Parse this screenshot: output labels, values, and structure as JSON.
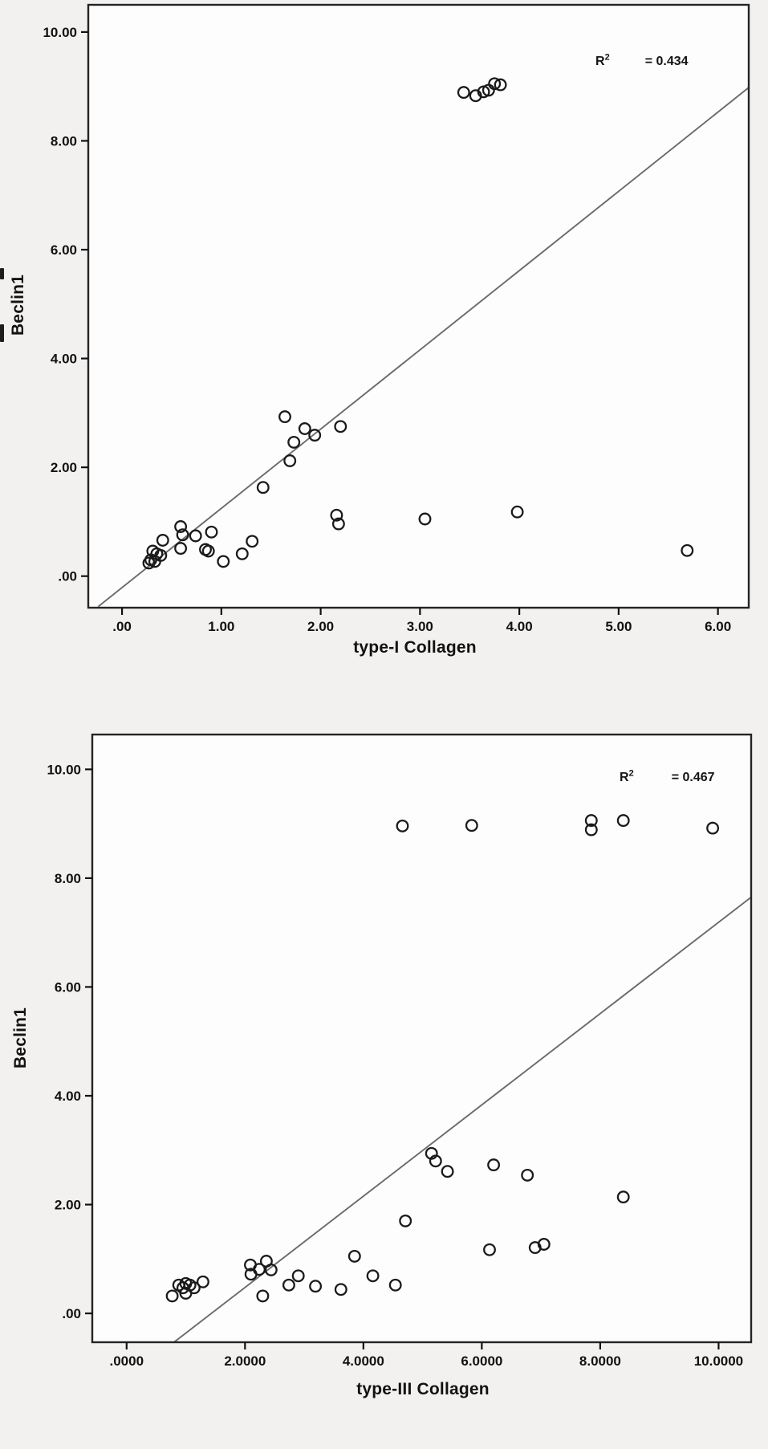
{
  "figure": {
    "background": "#f2f1f0",
    "marker_color": "#1a1a1a",
    "fit_line_color": "#6a6a6a",
    "frame_color": "#242424"
  },
  "chart_data": [
    {
      "id": "top",
      "type": "scatter",
      "title": "",
      "xlabel": "type-I Collagen",
      "ylabel": "Beclin1",
      "r2_base": "R",
      "r2_sup": "2",
      "r2_eq": "= 0.434",
      "r2_value": 0.434,
      "grid": false,
      "legend": "none",
      "xlim": [
        -0.34,
        6.31
      ],
      "ylim": [
        -0.58,
        10.5
      ],
      "x_ticks": [
        {
          "v": 0,
          "label": ".00"
        },
        {
          "v": 1,
          "label": "1.00"
        },
        {
          "v": 2,
          "label": "2.00"
        },
        {
          "v": 3,
          "label": "3.00"
        },
        {
          "v": 4,
          "label": "4.00"
        },
        {
          "v": 5,
          "label": "5.00"
        },
        {
          "v": 6,
          "label": "6.00"
        }
      ],
      "y_ticks": [
        {
          "v": 0,
          "label": ".00"
        },
        {
          "v": 2,
          "label": "2.00"
        },
        {
          "v": 4,
          "label": "4.00"
        },
        {
          "v": 6,
          "label": "6.00"
        },
        {
          "v": 8,
          "label": "8.00"
        },
        {
          "v": 10,
          "label": "10.00"
        }
      ],
      "fit_line": {
        "x1": -0.24,
        "y1": -0.56,
        "x2": 6.31,
        "y2": 8.98
      },
      "points": [
        [
          0.27,
          0.24
        ],
        [
          0.29,
          0.3
        ],
        [
          0.31,
          0.46
        ],
        [
          0.33,
          0.27
        ],
        [
          0.35,
          0.41
        ],
        [
          0.39,
          0.38
        ],
        [
          0.41,
          0.66
        ],
        [
          0.59,
          0.51
        ],
        [
          0.59,
          0.91
        ],
        [
          0.61,
          0.76
        ],
        [
          0.74,
          0.74
        ],
        [
          0.84,
          0.49
        ],
        [
          0.87,
          0.46
        ],
        [
          0.9,
          0.81
        ],
        [
          1.02,
          0.27
        ],
        [
          1.21,
          0.41
        ],
        [
          1.31,
          0.64
        ],
        [
          1.42,
          1.63
        ],
        [
          1.64,
          2.93
        ],
        [
          1.69,
          2.12
        ],
        [
          1.73,
          2.46
        ],
        [
          1.84,
          2.71
        ],
        [
          1.94,
          2.59
        ],
        [
          2.16,
          1.12
        ],
        [
          2.18,
          0.96
        ],
        [
          2.2,
          2.75
        ],
        [
          3.05,
          1.05
        ],
        [
          3.98,
          1.18
        ],
        [
          5.69,
          0.47
        ],
        [
          3.44,
          8.89
        ],
        [
          3.56,
          8.83
        ],
        [
          3.64,
          8.9
        ],
        [
          3.69,
          8.93
        ],
        [
          3.75,
          9.05
        ],
        [
          3.81,
          9.03
        ]
      ]
    },
    {
      "id": "bottom",
      "type": "scatter",
      "title": "",
      "xlabel": "type-III Collagen",
      "ylabel": "Beclin1",
      "r2_base": "R",
      "r2_sup": "2",
      "r2_eq": "= 0.467",
      "r2_value": 0.467,
      "grid": false,
      "legend": "none",
      "xlim": [
        -0.58,
        10.55
      ],
      "ylim": [
        -0.53,
        10.64
      ],
      "x_ticks": [
        {
          "v": 0,
          "label": ".0000"
        },
        {
          "v": 2,
          "label": "2.0000"
        },
        {
          "v": 4,
          "label": "4.0000"
        },
        {
          "v": 6,
          "label": "6.0000"
        },
        {
          "v": 8,
          "label": "8.0000"
        },
        {
          "v": 10,
          "label": "10.0000"
        }
      ],
      "y_ticks": [
        {
          "v": 0,
          "label": ".00"
        },
        {
          "v": 2,
          "label": "2.00"
        },
        {
          "v": 4,
          "label": "4.00"
        },
        {
          "v": 6,
          "label": "6.00"
        },
        {
          "v": 8,
          "label": "8.00"
        },
        {
          "v": 10,
          "label": "10.00"
        }
      ],
      "fit_line": {
        "x1": 0.8,
        "y1": -0.53,
        "x2": 10.55,
        "y2": 7.65
      },
      "points": [
        [
          0.77,
          0.32
        ],
        [
          0.88,
          0.52
        ],
        [
          0.95,
          0.47
        ],
        [
          1.0,
          0.55
        ],
        [
          1.0,
          0.37
        ],
        [
          1.07,
          0.52
        ],
        [
          1.14,
          0.47
        ],
        [
          1.29,
          0.58
        ],
        [
          2.09,
          0.89
        ],
        [
          2.1,
          0.72
        ],
        [
          2.24,
          0.81
        ],
        [
          2.3,
          0.32
        ],
        [
          2.36,
          0.96
        ],
        [
          2.44,
          0.8
        ],
        [
          2.74,
          0.52
        ],
        [
          2.9,
          0.69
        ],
        [
          3.19,
          0.5
        ],
        [
          3.62,
          0.44
        ],
        [
          3.85,
          1.05
        ],
        [
          4.16,
          0.69
        ],
        [
          4.54,
          0.52
        ],
        [
          4.71,
          1.7
        ],
        [
          5.15,
          2.94
        ],
        [
          5.22,
          2.8
        ],
        [
          5.42,
          2.61
        ],
        [
          6.13,
          1.17
        ],
        [
          6.2,
          2.73
        ],
        [
          6.77,
          2.54
        ],
        [
          6.9,
          1.21
        ],
        [
          7.05,
          1.27
        ],
        [
          8.39,
          2.14
        ],
        [
          4.66,
          8.96
        ],
        [
          5.83,
          8.97
        ],
        [
          7.85,
          9.06
        ],
        [
          7.85,
          8.89
        ],
        [
          8.39,
          9.06
        ],
        [
          9.9,
          8.92
        ]
      ]
    }
  ]
}
